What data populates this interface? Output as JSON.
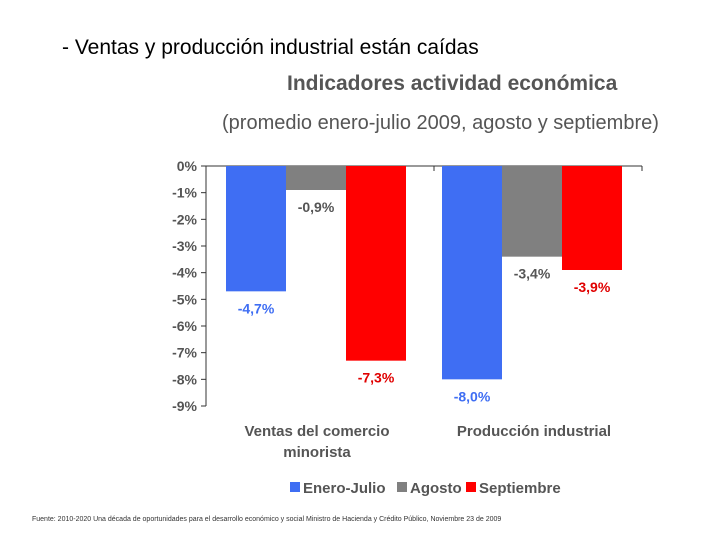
{
  "slide": {
    "title": "- Ventas y producción industrial están caídas",
    "footer": "Fuente: 2010-2020 Una década de oportunidades para el desarrollo económico y social Ministro de Hacienda y Crédito Público, Noviembre 23 de 2009"
  },
  "chart_data": {
    "type": "bar",
    "title": "Indicadores actividad económica",
    "subtitle": "(promedio enero-julio 2009, agosto y septiembre)",
    "categories": [
      "Ventas del comercio minorista",
      "Producción industrial"
    ],
    "category_lines": [
      [
        "Ventas del comercio",
        "minorista"
      ],
      [
        "Producción industrial"
      ]
    ],
    "series": [
      {
        "name": "Enero-Julio",
        "color": "#3f6ef3",
        "label_color": "#3f6ef3",
        "values": [
          -4.7,
          -8.0
        ],
        "labels": [
          "-4,7%",
          "-8,0%"
        ]
      },
      {
        "name": "Agosto",
        "color": "#808080",
        "label_color": "#555555",
        "values": [
          -0.9,
          -3.4
        ],
        "labels": [
          "-0,9%",
          "-3,4%"
        ]
      },
      {
        "name": "Septiembre",
        "color": "#ff0000",
        "label_color": "#e00000",
        "values": [
          -7.3,
          -3.9
        ],
        "labels": [
          "-7,3%",
          "-3,9%"
        ]
      }
    ],
    "ylim": [
      -9,
      0
    ],
    "yticks": [
      0,
      -1,
      -2,
      -3,
      -4,
      -5,
      -6,
      -7,
      -8,
      -9
    ],
    "ytick_labels": [
      "0%",
      "-1%",
      "-2%",
      "-3%",
      "-4%",
      "-5%",
      "-6%",
      "-7%",
      "-8%",
      "-9%"
    ],
    "legend": "bottom",
    "grid": false
  }
}
